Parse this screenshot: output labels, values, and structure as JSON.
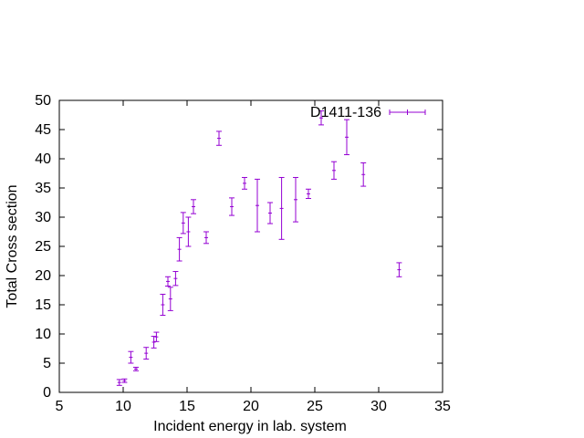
{
  "chart_data": {
    "type": "scatter",
    "title": "",
    "xlabel": "Incident energy in lab. system",
    "ylabel": "Total Cross section",
    "xlim": [
      5,
      35
    ],
    "ylim": [
      0,
      50
    ],
    "x_ticks": [
      "5",
      "10",
      "15",
      "20",
      "25",
      "30",
      "35"
    ],
    "y_ticks": [
      "0",
      "5",
      "10",
      "15",
      "20",
      "25",
      "30",
      "35",
      "40",
      "45",
      "50"
    ],
    "grid": false,
    "legend_position": "top-right",
    "series": [
      {
        "name": "D1411-136",
        "color": "#9400d3",
        "error_bars": "y",
        "points": [
          {
            "x": 9.7,
            "y": 1.7,
            "yerr": 0.5
          },
          {
            "x": 10.1,
            "y": 2.0,
            "yerr": 0.3
          },
          {
            "x": 10.6,
            "y": 6.0,
            "yerr": 1.0
          },
          {
            "x": 11.0,
            "y": 4.0,
            "yerr": 0.3
          },
          {
            "x": 11.8,
            "y": 6.7,
            "yerr": 1.0
          },
          {
            "x": 12.4,
            "y": 8.6,
            "yerr": 1.0
          },
          {
            "x": 12.6,
            "y": 9.5,
            "yerr": 0.8
          },
          {
            "x": 13.1,
            "y": 15.0,
            "yerr": 1.8
          },
          {
            "x": 13.5,
            "y": 19.0,
            "yerr": 0.8
          },
          {
            "x": 13.7,
            "y": 16.0,
            "yerr": 2.0
          },
          {
            "x": 14.1,
            "y": 19.5,
            "yerr": 1.2
          },
          {
            "x": 14.4,
            "y": 24.5,
            "yerr": 2.0
          },
          {
            "x": 14.7,
            "y": 29.0,
            "yerr": 1.8
          },
          {
            "x": 15.1,
            "y": 27.5,
            "yerr": 2.5
          },
          {
            "x": 15.5,
            "y": 31.8,
            "yerr": 1.2
          },
          {
            "x": 16.5,
            "y": 26.5,
            "yerr": 1.0
          },
          {
            "x": 17.5,
            "y": 43.5,
            "yerr": 1.2
          },
          {
            "x": 18.5,
            "y": 31.8,
            "yerr": 1.5
          },
          {
            "x": 19.5,
            "y": 35.8,
            "yerr": 1.0
          },
          {
            "x": 20.5,
            "y": 32.0,
            "yerr": 4.5
          },
          {
            "x": 21.5,
            "y": 30.7,
            "yerr": 1.8
          },
          {
            "x": 22.4,
            "y": 31.5,
            "yerr": 5.3
          },
          {
            "x": 23.5,
            "y": 33.0,
            "yerr": 3.8
          },
          {
            "x": 24.5,
            "y": 34.0,
            "yerr": 0.8
          },
          {
            "x": 25.5,
            "y": 47.0,
            "yerr": 1.2
          },
          {
            "x": 26.5,
            "y": 38.0,
            "yerr": 1.5
          },
          {
            "x": 27.5,
            "y": 43.7,
            "yerr": 3.0
          },
          {
            "x": 28.8,
            "y": 37.3,
            "yerr": 2.0
          },
          {
            "x": 31.6,
            "y": 21.0,
            "yerr": 1.2
          }
        ]
      }
    ]
  }
}
